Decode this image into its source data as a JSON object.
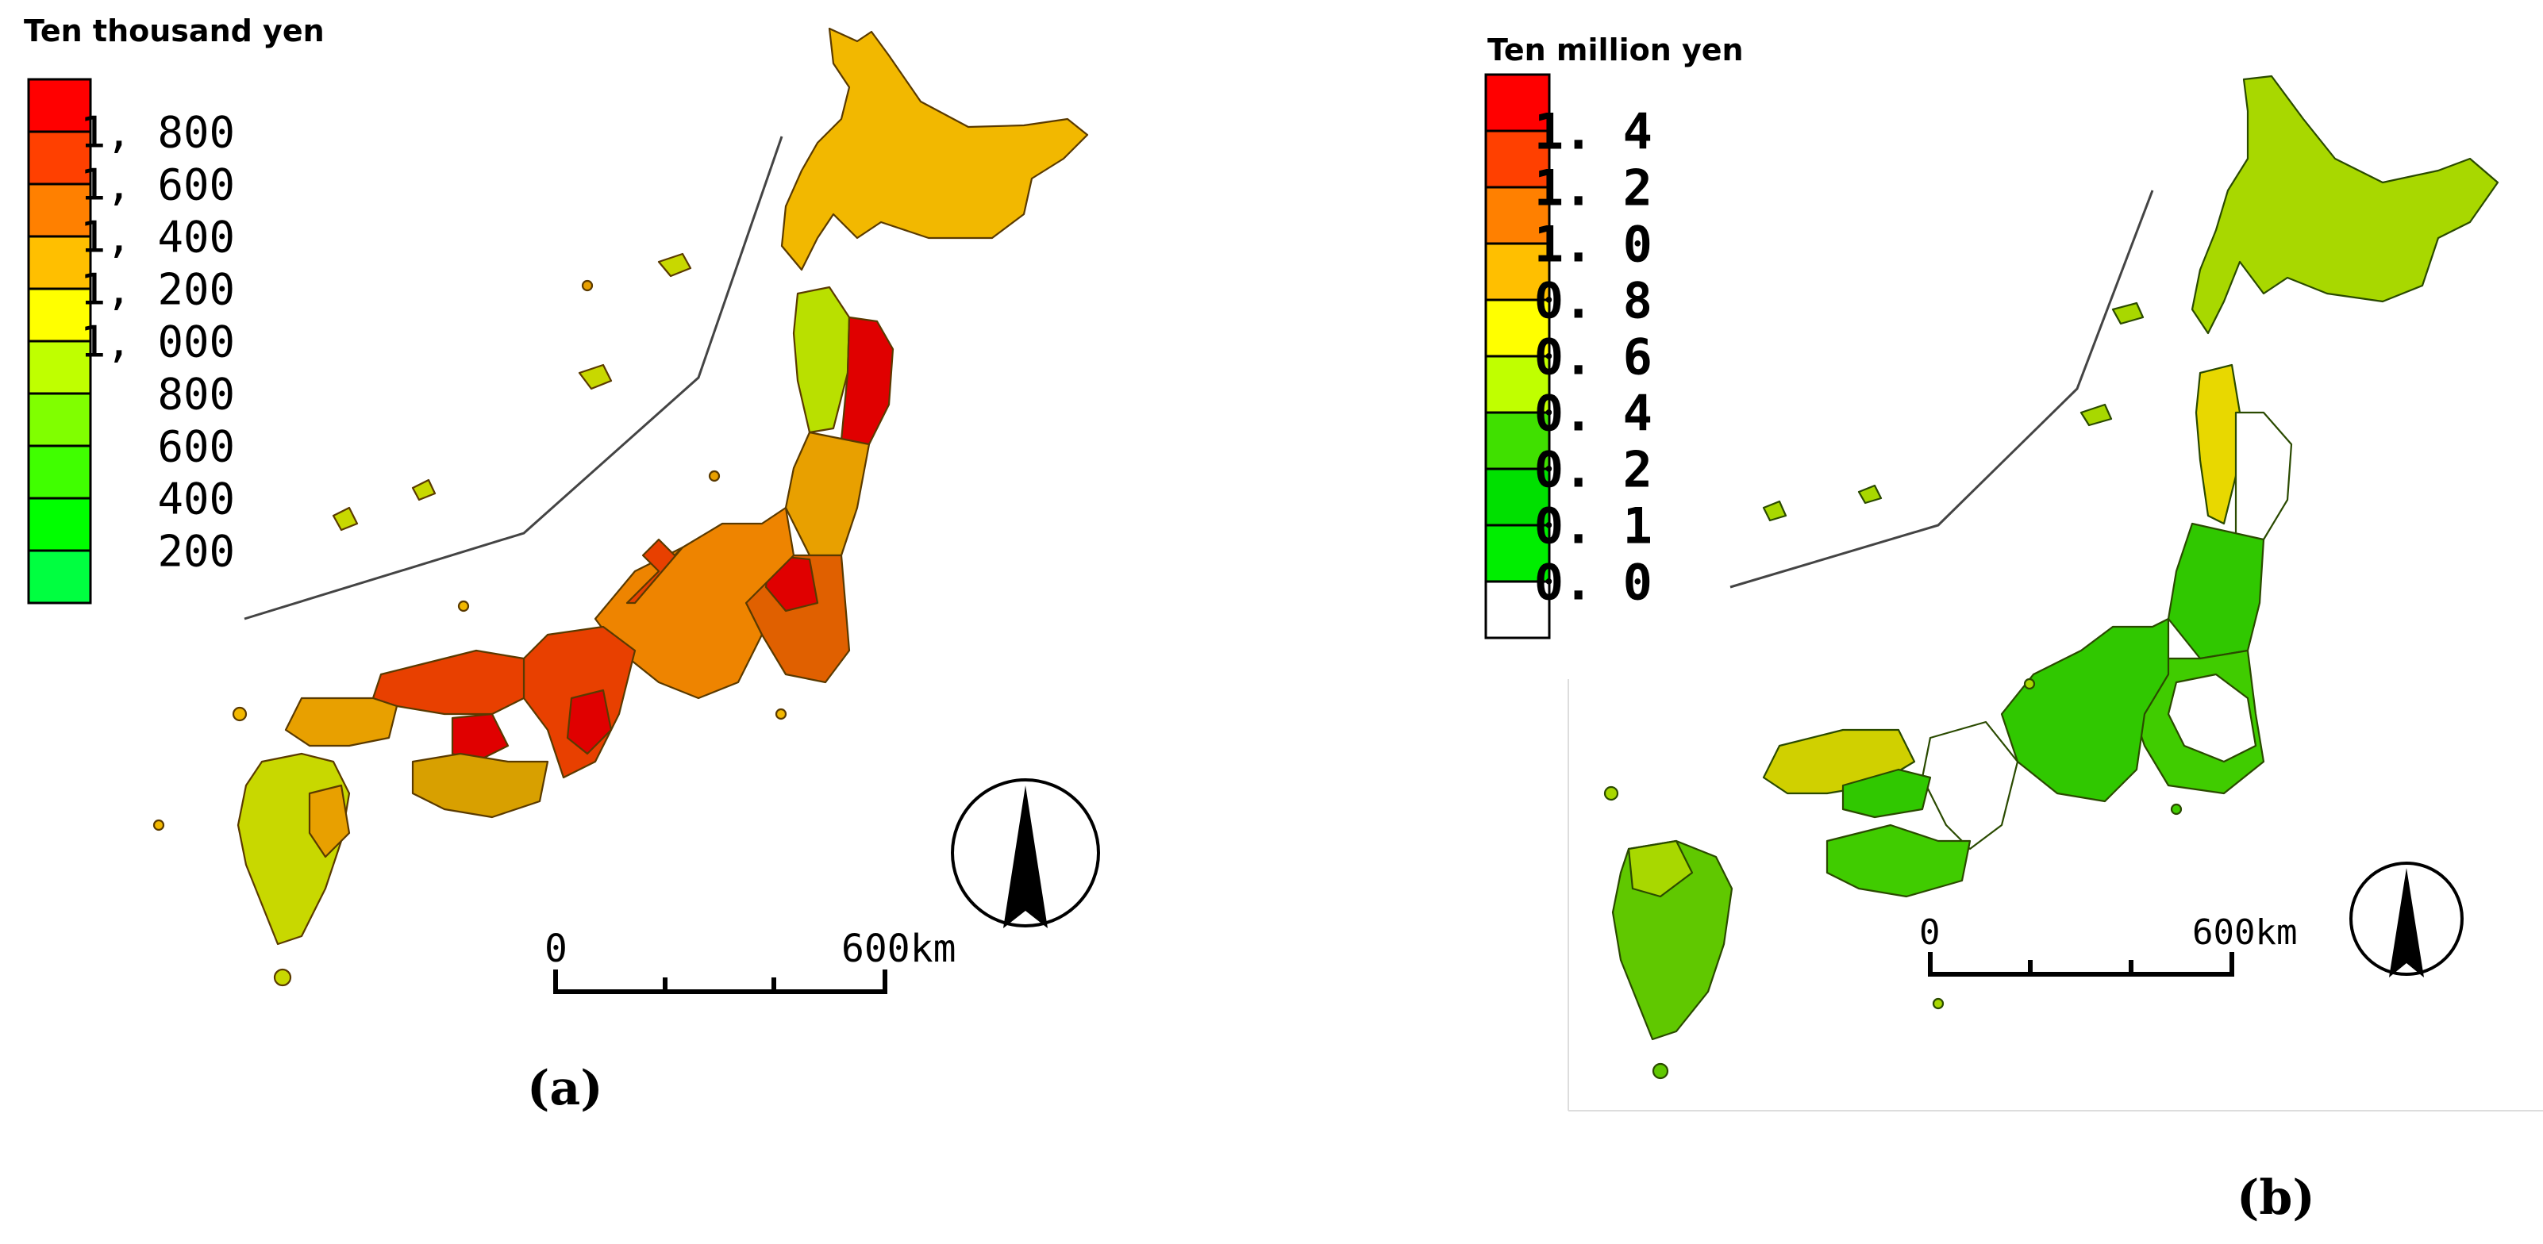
{
  "panels": [
    {
      "id": "a",
      "label": "(a)",
      "legend": {
        "title": "Ten thousand yen",
        "swatch_colors": [
          "#ff0000",
          "#ff4000",
          "#ff8000",
          "#ffbf00",
          "#ffff00",
          "#bfff00",
          "#80ff00",
          "#40ff00",
          "#00ff00",
          "#00ff40"
        ],
        "labels": [
          "1, 800",
          "1, 600",
          "1, 400",
          "1, 200",
          "1, 000",
          "800",
          "600",
          "400",
          "200"
        ]
      },
      "scale": {
        "start": "0",
        "end": "600km"
      },
      "region_colors": [
        "#f2b800",
        "#e8a000",
        "#b9e000",
        "#e00000",
        "#e06000",
        "#ee8400",
        "#e84000",
        "#d8a000",
        "#c8d800"
      ]
    },
    {
      "id": "b",
      "label": "(b)",
      "legend": {
        "title": "Ten million yen",
        "swatch_colors": [
          "#ff0000",
          "#ff4000",
          "#ff8000",
          "#ffbf00",
          "#ffff00",
          "#c0ff00",
          "#40e000",
          "#00e000",
          "#00ee00",
          "#ffffff"
        ],
        "labels": [
          "1. 4",
          "1. 2",
          "1. 0",
          "0. 8",
          "0. 6",
          "0. 4",
          "0. 2",
          "0. 1",
          "0. 0"
        ]
      },
      "scale": {
        "start": "0",
        "end": "600km"
      },
      "region_colors": [
        "#a8d800",
        "#98d000",
        "#e8d800",
        "#ffffff",
        "#30c800",
        "#40cc00",
        "#d0d000",
        "#60c800"
      ]
    }
  ]
}
